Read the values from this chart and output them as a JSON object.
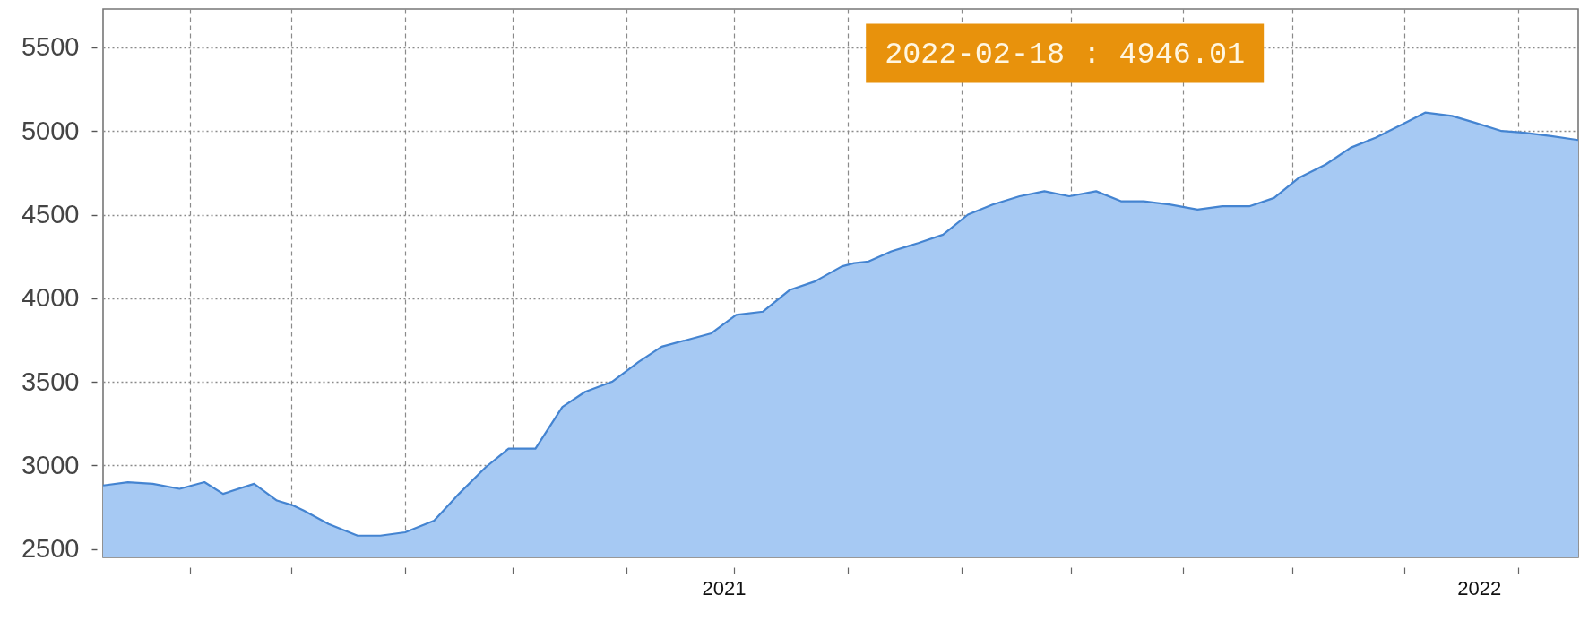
{
  "chart_data": {
    "type": "area",
    "x": [
      "2020-03-07",
      "2020-03-19",
      "2020-03-31",
      "2020-04-13",
      "2020-04-25",
      "2020-05-04",
      "2020-05-19",
      "2020-05-30",
      "2020-06-07",
      "2020-06-12",
      "2020-06-24",
      "2020-07-08",
      "2020-07-19",
      "2020-07-31",
      "2020-08-14",
      "2020-08-26",
      "2020-09-08",
      "2020-09-19",
      "2020-10-02",
      "2020-10-15",
      "2020-10-26",
      "2020-11-08",
      "2020-11-21",
      "2020-12-02",
      "2020-12-14",
      "2020-12-26",
      "2021-01-07",
      "2021-01-20",
      "2021-02-02",
      "2021-02-14",
      "2021-02-27",
      "2021-03-05",
      "2021-03-12",
      "2021-03-23",
      "2021-04-05",
      "2021-04-17",
      "2021-04-29",
      "2021-05-11",
      "2021-05-24",
      "2021-06-05",
      "2021-06-17",
      "2021-06-30",
      "2021-07-12",
      "2021-07-23",
      "2021-08-05",
      "2021-08-18",
      "2021-08-30",
      "2021-09-12",
      "2021-09-24",
      "2021-10-06",
      "2021-10-19",
      "2021-10-31",
      "2021-11-12",
      "2021-11-25",
      "2021-12-06",
      "2021-12-19",
      "2021-12-30",
      "2022-01-12",
      "2022-01-23",
      "2022-02-05",
      "2022-02-18"
    ],
    "values": [
      2880,
      2900,
      2890,
      2860,
      2900,
      2830,
      2890,
      2790,
      2760,
      2730,
      2650,
      2580,
      2580,
      2600,
      2670,
      2830,
      2990,
      3100,
      3100,
      3350,
      3440,
      3500,
      3620,
      3710,
      3750,
      3790,
      3900,
      3920,
      4050,
      4100,
      4190,
      4210,
      4220,
      4280,
      4330,
      4380,
      4500,
      4560,
      4610,
      4640,
      4610,
      4640,
      4580,
      4580,
      4560,
      4530,
      4550,
      4550,
      4600,
      4720,
      4800,
      4900,
      4960,
      5040,
      5110,
      5090,
      5050,
      5000,
      4990,
      4970,
      4946.01
    ],
    "color": "#a6c9f3",
    "xlim": [
      "2020-03-07",
      "2022-02-18"
    ],
    "xticks": [
      {
        "value": "2020-04-18",
        "label": null
      },
      {
        "value": "2020-06-06",
        "label": null
      },
      {
        "value": "2020-07-31",
        "label": null
      },
      {
        "value": "2020-09-21",
        "label": null
      },
      {
        "value": "2020-11-15",
        "label": null
      },
      {
        "value": "2021-01-01",
        "label": "2021"
      },
      {
        "value": "2021-01-06",
        "label": null
      },
      {
        "value": "2021-03-02",
        "label": null
      },
      {
        "value": "2021-04-26",
        "label": null
      },
      {
        "value": "2021-06-18",
        "label": null
      },
      {
        "value": "2021-08-11",
        "label": null
      },
      {
        "value": "2021-10-03",
        "label": null
      },
      {
        "value": "2021-11-26",
        "label": null
      },
      {
        "value": "2022-01-01",
        "label": "2022"
      },
      {
        "value": "2022-01-20",
        "label": null
      }
    ],
    "ylim": [
      2450,
      5730
    ],
    "yticks": [
      2500,
      3000,
      3500,
      4000,
      4500,
      5000,
      5500
    ],
    "grid": true,
    "annotations": [
      "2022-02-18 : 4946.01"
    ]
  }
}
